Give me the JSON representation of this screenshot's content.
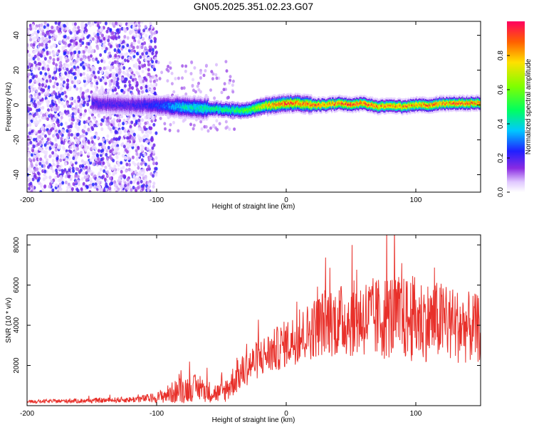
{
  "title": "GN05.2025.351.02.23.G07",
  "chart_data": [
    {
      "type": "heatmap",
      "xlabel": "Height of straight line (km)",
      "ylabel": "Frequency (Hz)",
      "xlim": [
        -200,
        150
      ],
      "ylim": [
        -50,
        48
      ],
      "xticks": [
        -200,
        -100,
        0,
        100
      ],
      "xtick_labels": [
        "-200",
        "-100",
        "0",
        "100"
      ],
      "yticks": [
        -40,
        -20,
        0,
        20,
        40
      ],
      "ytick_labels": [
        "-40",
        "-20",
        "0",
        "20",
        "40"
      ],
      "colorbar": {
        "label": "Normalized spectral amplitude",
        "range": [
          0,
          1
        ],
        "ticks": [
          0,
          0.2,
          0.4,
          0.6,
          0.8
        ],
        "tick_labels": [
          "0.0",
          "0.2",
          "0.4",
          "0.6",
          "0.8"
        ]
      },
      "ridge": {
        "description": "dominant frequency track",
        "x": [
          -150,
          -120,
          -100,
          -80,
          -60,
          -40,
          -30,
          -20,
          -10,
          0,
          10,
          20,
          30,
          40,
          50,
          60,
          70,
          80,
          90,
          100,
          110,
          120,
          130,
          140,
          150
        ],
        "freq": [
          1,
          0,
          0,
          -1,
          -2,
          -3,
          -3,
          -1,
          0,
          1,
          1,
          0,
          0,
          1,
          0,
          1,
          -1,
          0,
          -1,
          0,
          0,
          1,
          1,
          1,
          1
        ],
        "amplitude": [
          0.2,
          0.2,
          0.25,
          0.4,
          0.45,
          0.5,
          0.55,
          0.7,
          0.85,
          0.9,
          0.85,
          0.9,
          0.85,
          0.9,
          0.95,
          0.9,
          0.85,
          0.85,
          0.85,
          0.85,
          0.9,
          0.85,
          0.9,
          0.9,
          0.85
        ]
      },
      "noise_region_x": [
        -200,
        -100
      ]
    },
    {
      "type": "line",
      "xlabel": "Height of straight line (km)",
      "ylabel": "SNR (10 * v/v)",
      "xlim": [
        -200,
        150
      ],
      "ylim": [
        0,
        8500
      ],
      "xticks": [
        -200,
        -100,
        0,
        100
      ],
      "xtick_labels": [
        "-200",
        "-100",
        "0",
        "100"
      ],
      "yticks": [
        2000,
        4000,
        6000,
        8000
      ],
      "ytick_labels": [
        "2000",
        "4000",
        "6000",
        "8000"
      ],
      "series": [
        {
          "name": "SNR",
          "color": "#e8302a",
          "envelope_x": [
            -200,
            -150,
            -120,
            -100,
            -90,
            -80,
            -70,
            -60,
            -50,
            -45,
            -40,
            -30,
            -20,
            -10,
            0,
            10,
            20,
            30,
            40,
            50,
            60,
            70,
            80,
            90,
            95,
            100,
            110,
            120,
            130,
            140,
            150
          ],
          "envelope_mean": [
            200,
            250,
            300,
            400,
            600,
            800,
            900,
            700,
            600,
            900,
            1300,
            1900,
            2400,
            2700,
            3100,
            3400,
            3800,
            4200,
            4200,
            4300,
            4400,
            4300,
            4500,
            4300,
            4300,
            4300,
            4200,
            4200,
            4000,
            3900,
            3800
          ],
          "envelope_spread": [
            80,
            120,
            150,
            250,
            500,
            700,
            650,
            550,
            500,
            700,
            800,
            900,
            1000,
            1100,
            1200,
            1300,
            1500,
            1700,
            1800,
            1900,
            2000,
            2100,
            2200,
            2100,
            2200,
            2200,
            2000,
            2000,
            1900,
            1800,
            1700
          ]
        }
      ]
    }
  ]
}
